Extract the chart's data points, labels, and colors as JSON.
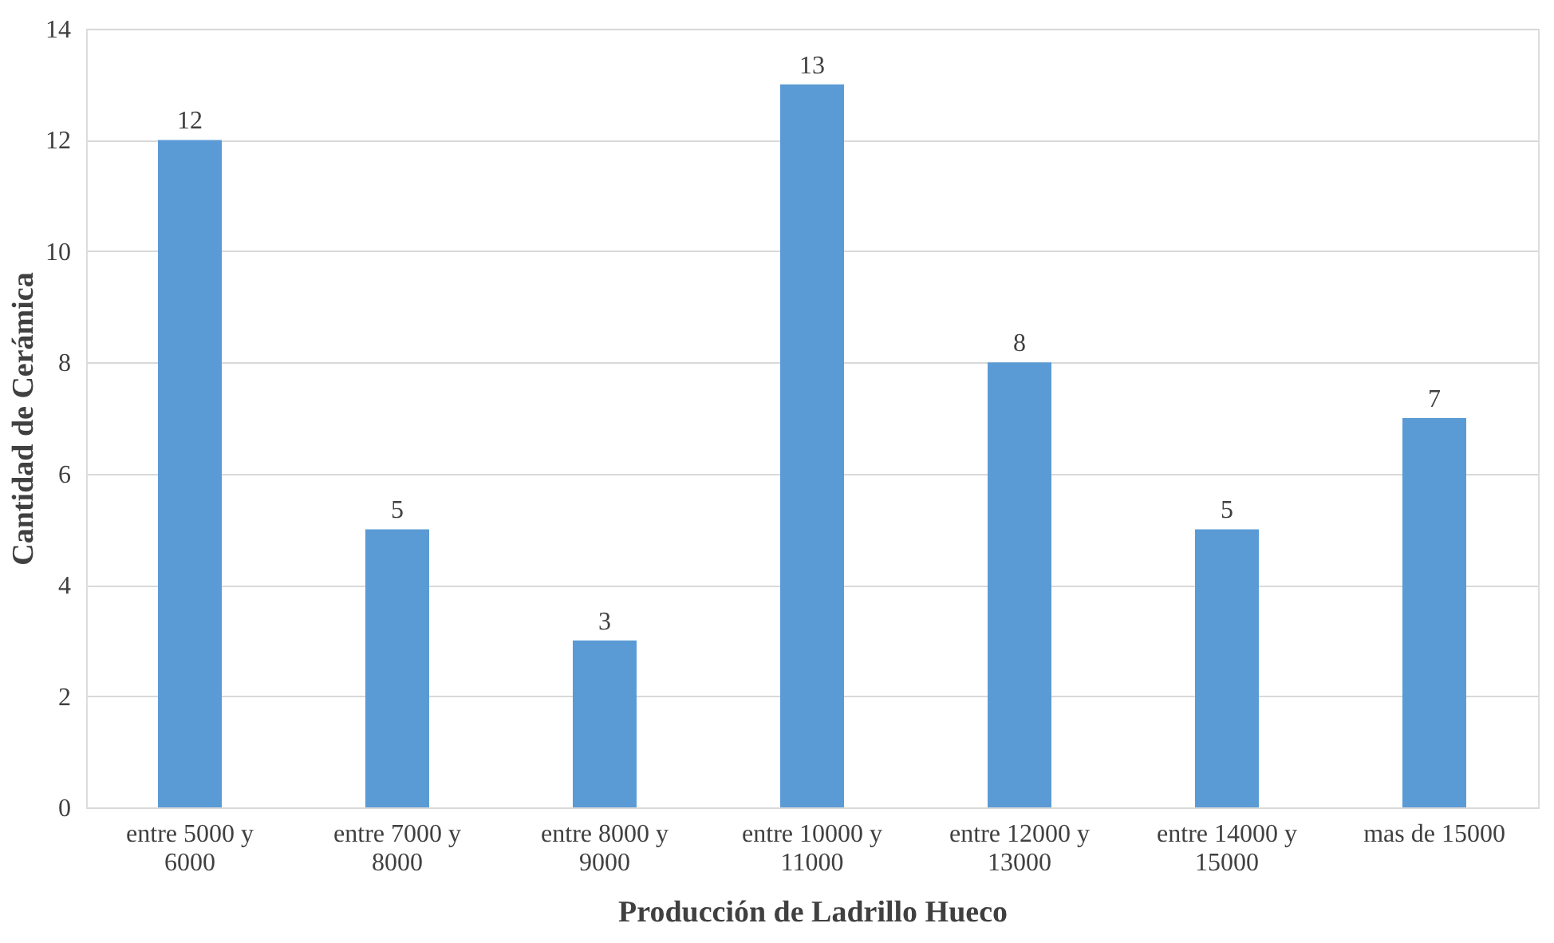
{
  "chart_data": {
    "type": "bar",
    "xlabel": "Producción de Ladrillo Hueco",
    "ylabel": "Cantidad de Cerámica",
    "categories": [
      "entre 5000 y 6000",
      "entre 7000 y 8000",
      "entre 8000 y 9000",
      "entre 10000 y 11000",
      "entre 12000 y 13000",
      "entre 14000 y 15000",
      "mas de 15000"
    ],
    "values": [
      12,
      5,
      3,
      13,
      8,
      5,
      7
    ],
    "color": "#5b9bd5",
    "ylim": [
      0,
      14
    ],
    "yticks": [
      0,
      2,
      4,
      6,
      8,
      10,
      12,
      14
    ],
    "grid": "y",
    "data_labels": true
  }
}
